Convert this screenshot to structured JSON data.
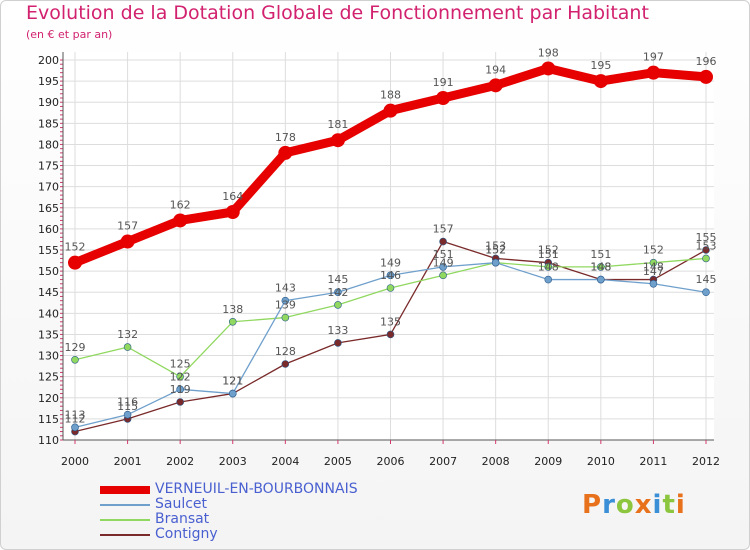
{
  "title": "Evolution de la Dotation Globale de Fonctionnement par Habitant",
  "subtitle": "(en € et par an)",
  "logo": {
    "text": "Proxiti",
    "letters": [
      {
        "c": "P",
        "color": "#e8711c"
      },
      {
        "c": "r",
        "color": "#3a8fd6"
      },
      {
        "c": "o",
        "color": "#8cc63f"
      },
      {
        "c": "x",
        "color": "#e8711c"
      },
      {
        "c": "i",
        "color": "#3a8fd6"
      },
      {
        "c": "t",
        "color": "#8cc63f"
      },
      {
        "c": "i",
        "color": "#e8711c"
      }
    ]
  },
  "chart_data": {
    "type": "line",
    "title": "Evolution de la Dotation Globale de Fonctionnement par Habitant",
    "subtitle": "(en € et par an)",
    "xlabel": "",
    "ylabel": "",
    "x": [
      "2000",
      "2001",
      "2002",
      "2003",
      "2004",
      "2005",
      "2006",
      "2007",
      "2008",
      "2009",
      "2010",
      "2011",
      "2012"
    ],
    "ylim": [
      110,
      200
    ],
    "yticks": [
      110,
      115,
      120,
      125,
      130,
      135,
      140,
      145,
      150,
      155,
      160,
      165,
      170,
      175,
      180,
      185,
      190,
      195,
      200
    ],
    "grid": true,
    "legend_position": "bottom-left",
    "series": [
      {
        "name": "VERNEUIL-EN-BOURBONNAIS",
        "color": "#e60000",
        "values": [
          152,
          157,
          162,
          164,
          178,
          181,
          188,
          191,
          194,
          198,
          195,
          197,
          196
        ]
      },
      {
        "name": "Saulcet",
        "color": "#6fa0cc",
        "values": [
          113,
          116,
          122,
          121,
          143,
          145,
          149,
          151,
          152,
          148,
          148,
          147,
          145
        ]
      },
      {
        "name": "Bransat",
        "color": "#90d860",
        "values": [
          129,
          132,
          125,
          138,
          139,
          142,
          146,
          149,
          152,
          151,
          151,
          152,
          153
        ]
      },
      {
        "name": "Contigny",
        "color": "#7a2a2a",
        "values": [
          112,
          115,
          119,
          121,
          128,
          133,
          135,
          157,
          153,
          152,
          148,
          148,
          155
        ]
      }
    ]
  }
}
